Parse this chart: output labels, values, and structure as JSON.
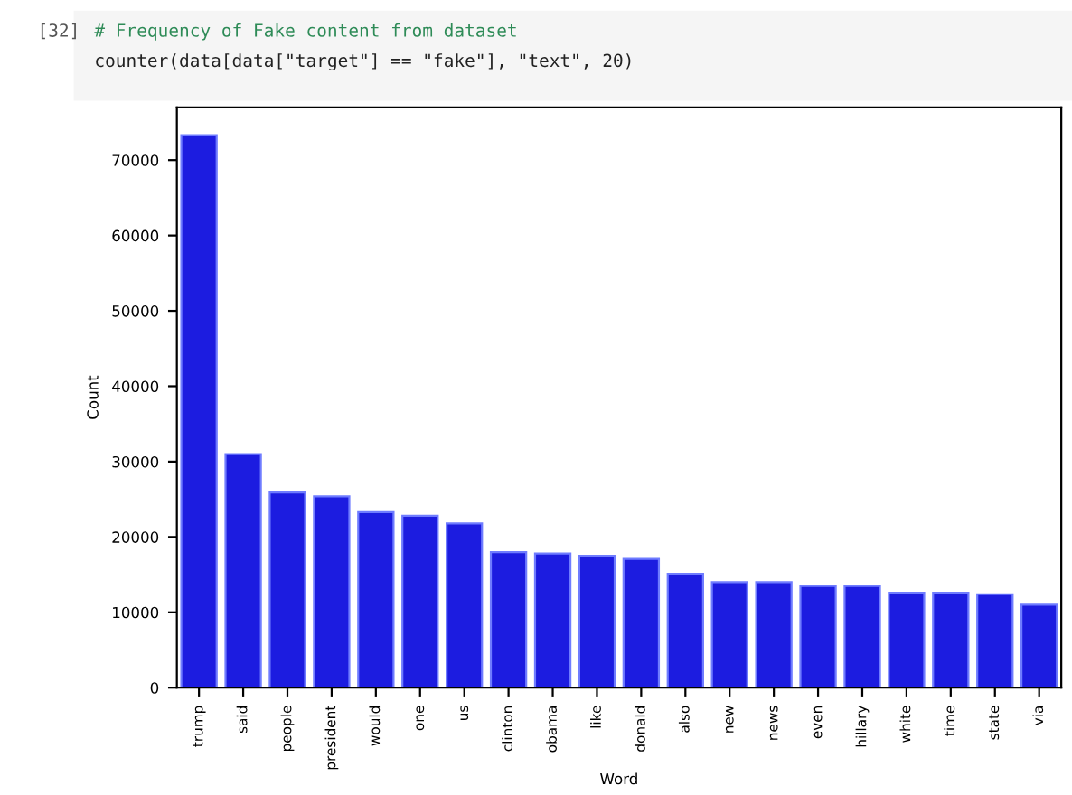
{
  "chart_data": {
    "type": "bar",
    "annotations": [
      "[32]",
      "# Frequency of Fake content from dataset",
      "counter(data[data[\"target\"] == \"fake\"], \"text\", 20)"
    ],
    "xlabel": "Word",
    "ylabel": "Count",
    "categories": [
      "trump",
      "said",
      "people",
      "president",
      "would",
      "one",
      "us",
      "clinton",
      "obama",
      "like",
      "donald",
      "also",
      "new",
      "news",
      "even",
      "hillary",
      "white",
      "time",
      "state",
      "via"
    ],
    "values": [
      73300,
      31000,
      25900,
      25400,
      23300,
      22800,
      21800,
      18000,
      17800,
      17500,
      17100,
      15100,
      14000,
      14000,
      13500,
      13500,
      12600,
      12600,
      12400,
      11000
    ],
    "color": "#1c1ce0",
    "ylim": [
      0,
      77000
    ],
    "yticks": [
      0,
      10000,
      20000,
      30000,
      40000,
      50000,
      60000,
      70000
    ],
    "grid": false
  }
}
